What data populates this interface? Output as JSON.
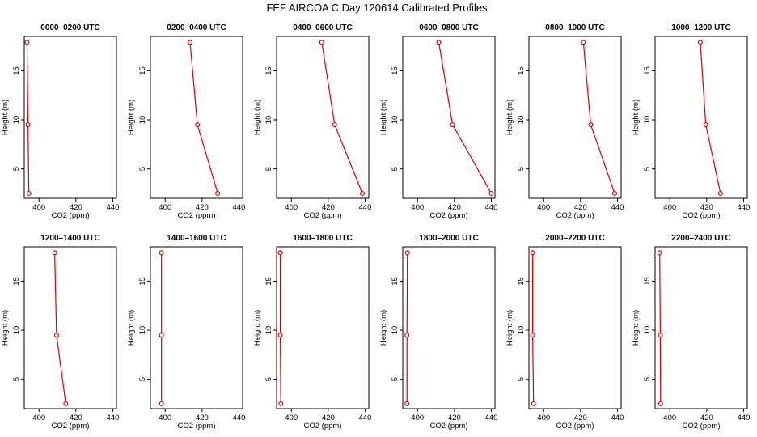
{
  "title": "FEF AIRCOA C  Day 120614  Calibrated Profiles",
  "colors": {
    "series": "#dd0000",
    "axis": "#000000",
    "background": "#ffffff"
  },
  "chart_data": [
    {
      "type": "line",
      "title": "0000–0200 UTC",
      "xlabel": "CO2 (ppm)",
      "ylabel": "Height (m)",
      "xlim": [
        392,
        442
      ],
      "ylim": [
        2,
        18.5
      ],
      "xticks": [
        400,
        420,
        440
      ],
      "yticks": [
        5,
        10,
        15
      ],
      "x": [
        393.5,
        394.0,
        394.5
      ],
      "y": [
        17.9,
        9.5,
        2.5
      ]
    },
    {
      "type": "line",
      "title": "0200–0400 UTC",
      "xlabel": "CO2 (ppm)",
      "ylabel": "Height (m)",
      "xlim": [
        392,
        442
      ],
      "ylim": [
        2,
        18.5
      ],
      "xticks": [
        400,
        420,
        440
      ],
      "yticks": [
        5,
        10,
        15
      ],
      "x": [
        413.5,
        417.5,
        428.5
      ],
      "y": [
        17.9,
        9.5,
        2.5
      ]
    },
    {
      "type": "line",
      "title": "0400–0600 UTC",
      "xlabel": "CO2 (ppm)",
      "ylabel": "Height (m)",
      "xlim": [
        392,
        442
      ],
      "ylim": [
        2,
        18.5
      ],
      "xticks": [
        400,
        420,
        440
      ],
      "yticks": [
        5,
        10,
        15
      ],
      "x": [
        416.5,
        423.5,
        438.5
      ],
      "y": [
        17.9,
        9.5,
        2.5
      ]
    },
    {
      "type": "line",
      "title": "0600–0800 UTC",
      "xlabel": "CO2 (ppm)",
      "ylabel": "Height (m)",
      "xlim": [
        392,
        442
      ],
      "ylim": [
        2,
        18.5
      ],
      "xticks": [
        400,
        420,
        440
      ],
      "yticks": [
        5,
        10,
        15
      ],
      "x": [
        411.5,
        419.0,
        440.0
      ],
      "y": [
        17.9,
        9.5,
        2.5
      ]
    },
    {
      "type": "line",
      "title": "0800–1000 UTC",
      "xlabel": "CO2 (ppm)",
      "ylabel": "Height (m)",
      "xlim": [
        392,
        442
      ],
      "ylim": [
        2,
        18.5
      ],
      "xticks": [
        400,
        420,
        440
      ],
      "yticks": [
        5,
        10,
        15
      ],
      "x": [
        421.5,
        425.5,
        438.5
      ],
      "y": [
        17.9,
        9.5,
        2.5
      ]
    },
    {
      "type": "line",
      "title": "1000–1200 UTC",
      "xlabel": "CO2 (ppm)",
      "ylabel": "Height (m)",
      "xlim": [
        392,
        442
      ],
      "ylim": [
        2,
        18.5
      ],
      "xticks": [
        400,
        420,
        440
      ],
      "yticks": [
        5,
        10,
        15
      ],
      "x": [
        416.5,
        419.5,
        427.5
      ],
      "y": [
        17.9,
        9.5,
        2.5
      ]
    },
    {
      "type": "line",
      "title": "1200–1400 UTC",
      "xlabel": "CO2 (ppm)",
      "ylabel": "Height (m)",
      "xlim": [
        392,
        442
      ],
      "ylim": [
        2,
        18.5
      ],
      "xticks": [
        400,
        420,
        440
      ],
      "yticks": [
        5,
        10,
        15
      ],
      "x": [
        408.5,
        409.5,
        414.5
      ],
      "y": [
        17.9,
        9.5,
        2.5
      ]
    },
    {
      "type": "line",
      "title": "1400–1600 UTC",
      "xlabel": "CO2 (ppm)",
      "ylabel": "Height (m)",
      "xlim": [
        392,
        442
      ],
      "ylim": [
        2,
        18.5
      ],
      "xticks": [
        400,
        420,
        440
      ],
      "yticks": [
        5,
        10,
        15
      ],
      "x": [
        398.0,
        398.0,
        398.0
      ],
      "y": [
        17.9,
        9.5,
        2.5
      ]
    },
    {
      "type": "line",
      "title": "1600–1800 UTC",
      "xlabel": "CO2 (ppm)",
      "ylabel": "Height (m)",
      "xlim": [
        392,
        442
      ],
      "ylim": [
        2,
        18.5
      ],
      "xticks": [
        400,
        420,
        440
      ],
      "yticks": [
        5,
        10,
        15
      ],
      "x": [
        394.0,
        394.0,
        394.3
      ],
      "y": [
        17.9,
        9.5,
        2.5
      ]
    },
    {
      "type": "line",
      "title": "1800–2000 UTC",
      "xlabel": "CO2 (ppm)",
      "ylabel": "Height (m)",
      "xlim": [
        392,
        442
      ],
      "ylim": [
        2,
        18.5
      ],
      "xticks": [
        400,
        420,
        440
      ],
      "yticks": [
        5,
        10,
        15
      ],
      "x": [
        394.5,
        394.3,
        394.3
      ],
      "y": [
        17.9,
        9.5,
        2.5
      ]
    },
    {
      "type": "line",
      "title": "2000–2200 UTC",
      "xlabel": "CO2 (ppm)",
      "ylabel": "Height (m)",
      "xlim": [
        392,
        442
      ],
      "ylim": [
        2,
        18.5
      ],
      "xticks": [
        400,
        420,
        440
      ],
      "yticks": [
        5,
        10,
        15
      ],
      "x": [
        394.0,
        394.0,
        394.5
      ],
      "y": [
        17.9,
        9.5,
        2.5
      ]
    },
    {
      "type": "line",
      "title": "2200–2400 UTC",
      "xlabel": "CO2 (ppm)",
      "ylabel": "Height (m)",
      "xlim": [
        392,
        442
      ],
      "ylim": [
        2,
        18.5
      ],
      "xticks": [
        400,
        420,
        440
      ],
      "yticks": [
        5,
        10,
        15
      ],
      "x": [
        394.5,
        394.8,
        395.0
      ],
      "y": [
        17.9,
        9.5,
        2.5
      ]
    }
  ]
}
